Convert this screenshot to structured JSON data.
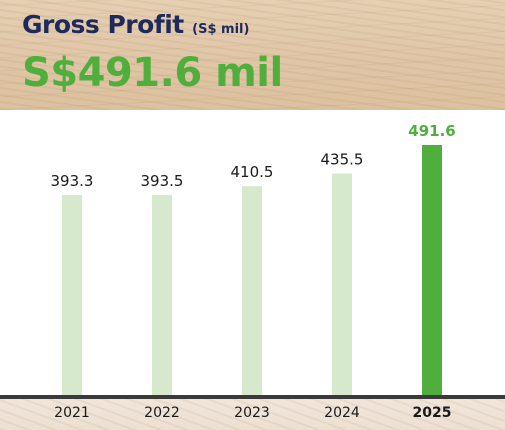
{
  "header": {
    "title": "Gross Profit",
    "title_unit": "(S$ mil)",
    "headline": "S$491.6 mil"
  },
  "colors": {
    "title": "#1f2a5a",
    "headline_green": "#4fae3c",
    "bar_light": "#d6e9cd",
    "bar_highlight": "#4fae3c",
    "baseline": "#3a3a3a"
  },
  "chart_data": {
    "type": "bar",
    "categories": [
      "2021",
      "2022",
      "2023",
      "2024",
      "2025"
    ],
    "values": [
      393.3,
      393.5,
      410.5,
      435.5,
      491.6
    ],
    "value_labels": [
      "393.3",
      "393.5",
      "410.5",
      "435.5",
      "491.6"
    ],
    "highlight_index": 4,
    "title": "Gross Profit",
    "unit": "S$ mil",
    "xlabel": "",
    "ylabel": "",
    "ylim": [
      0,
      491.6
    ],
    "grid": false,
    "legend": "none"
  }
}
